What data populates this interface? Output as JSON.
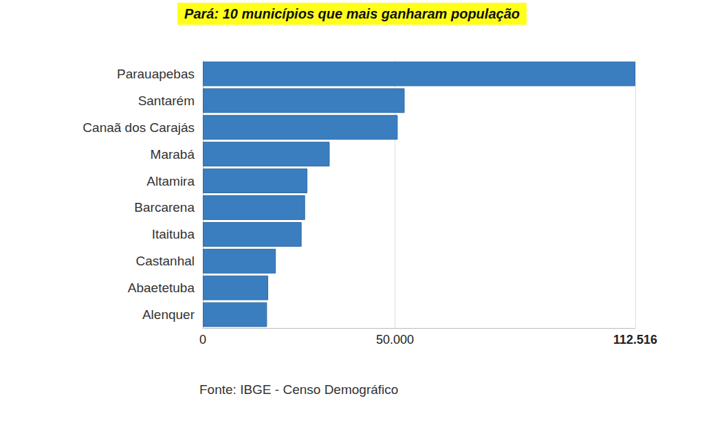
{
  "chart_data": {
    "type": "bar",
    "orientation": "horizontal",
    "title": "Pará: 10 municípios que mais ganharam população",
    "source": "Fonte: IBGE - Censo Demográfico",
    "categories": [
      "Parauapebas",
      "Santarém",
      "Canaã dos Carajás",
      "Marabá",
      "Altamira",
      "Barcarena",
      "Itaituba",
      "Castanhal",
      "Abaetetuba",
      "Alenquer"
    ],
    "values": [
      112516,
      52500,
      50700,
      33000,
      27200,
      26600,
      25700,
      19000,
      17000,
      16700
    ],
    "color": "#3a7ebf",
    "xlim": [
      0,
      112516
    ],
    "xticks": [
      0,
      {
        "value": 50000,
        "label": "50.000"
      },
      {
        "value": 112516,
        "label": "112.516"
      }
    ],
    "grid": true
  }
}
